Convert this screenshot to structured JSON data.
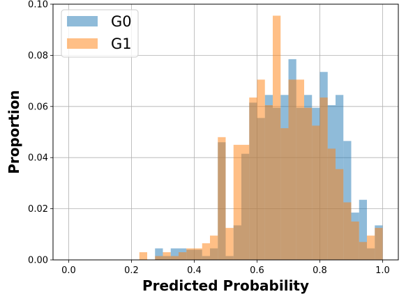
{
  "chart_data": {
    "type": "bar",
    "title": "",
    "xlabel": "Predicted Probability",
    "ylabel": "Proportion",
    "xlim": [
      -0.05,
      1.05
    ],
    "ylim": [
      0,
      0.1
    ],
    "x_ticks": [
      "0.0",
      "0.2",
      "0.4",
      "0.6",
      "0.8",
      "1.0"
    ],
    "y_ticks": [
      "0.00",
      "0.02",
      "0.04",
      "0.06",
      "0.08",
      "0.10"
    ],
    "grid": true,
    "legend_placement": "top-left",
    "bin_edges": [
      0.0,
      0.025,
      0.05,
      0.075,
      0.1,
      0.125,
      0.15,
      0.175,
      0.2,
      0.225,
      0.25,
      0.275,
      0.3,
      0.325,
      0.35,
      0.375,
      0.4,
      0.425,
      0.45,
      0.475,
      0.5,
      0.525,
      0.55,
      0.575,
      0.6,
      0.625,
      0.65,
      0.675,
      0.7,
      0.725,
      0.75,
      0.775,
      0.8,
      0.825,
      0.85,
      0.875,
      0.9,
      0.925,
      0.95,
      0.975,
      1.0
    ],
    "series": [
      {
        "name": "G0",
        "color": "#1f77b4",
        "values": [
          0,
          0,
          0,
          0,
          0,
          0,
          0,
          0,
          0,
          0,
          0,
          0.0045,
          0.0015,
          0.0045,
          0.0045,
          0.004,
          0.004,
          0.0015,
          0.0045,
          0.046,
          0.0015,
          0.0135,
          0.0415,
          0.0615,
          0.0555,
          0.0645,
          0.0595,
          0.0645,
          0.0785,
          0.0595,
          0.0645,
          0.0595,
          0.0735,
          0.0605,
          0.0645,
          0.0465,
          0.0185,
          0.0235,
          0.0045,
          0.0135
        ]
      },
      {
        "name": "G1",
        "color": "#ff7f0e",
        "values": [
          0,
          0,
          0,
          0,
          0,
          0,
          0,
          0,
          0,
          0.003,
          0,
          0.0015,
          0.003,
          0.0015,
          0.003,
          0.0045,
          0.0045,
          0.0065,
          0.0095,
          0.048,
          0.0125,
          0.045,
          0.045,
          0.0635,
          0.0705,
          0.0605,
          0.0955,
          0.0515,
          0.0705,
          0.0705,
          0.0595,
          0.0525,
          0.0635,
          0.0435,
          0.0355,
          0.0225,
          0.015,
          0.007,
          0.0095,
          0.0125
        ]
      }
    ]
  }
}
